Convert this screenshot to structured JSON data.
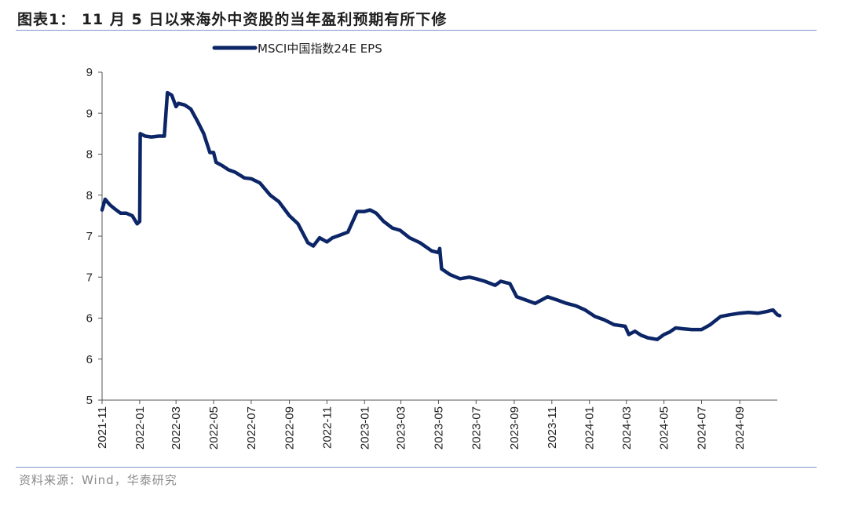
{
  "title": "图表1：  11 月 5 日以来海外中资股的当年盈利预期有所下修",
  "source": "资料来源：Wind，华泰研究",
  "colors": {
    "series": "#0b2566",
    "rule": "#7f95c8",
    "axis": "#555555"
  },
  "chart_data": {
    "type": "line",
    "title": "图表1：  11 月 5 日以来海外中资股的当年盈利预期有所下修",
    "xlabel": "",
    "ylabel": "",
    "x_ticks": [
      "2021-11",
      "2022-01",
      "2022-03",
      "2022-05",
      "2022-07",
      "2022-09",
      "2022-11",
      "2023-01",
      "2023-03",
      "2023-05",
      "2023-07",
      "2023-09",
      "2023-11",
      "2024-01",
      "2024-03",
      "2024-05",
      "2024-07",
      "2024-09"
    ],
    "y_ticks": [
      "5",
      "6",
      "6",
      "7",
      "7",
      "8",
      "8",
      "9",
      "9"
    ],
    "y_tick_values": [
      5.0,
      5.5,
      6.0,
      6.5,
      7.0,
      7.5,
      8.0,
      8.5,
      9.0
    ],
    "ylim": [
      5.0,
      9.0
    ],
    "xlim": [
      "2021-11",
      "2024-11"
    ],
    "legend": {
      "position": "top-center"
    },
    "grid": false,
    "series": [
      {
        "name": "MSCI中国指数24E EPS",
        "points": [
          [
            "2021-11",
            7.32
          ],
          [
            "2021-11-06",
            7.45
          ],
          [
            "2021-11-14",
            7.38
          ],
          [
            "2021-11-22",
            7.33
          ],
          [
            "2021-12-01",
            7.28
          ],
          [
            "2021-12-10",
            7.28
          ],
          [
            "2021-12-20",
            7.25
          ],
          [
            "2021-12-28",
            7.15
          ],
          [
            "2022-01-01",
            7.18
          ],
          [
            "2022-01-02",
            8.25
          ],
          [
            "2022-01-10",
            8.22
          ],
          [
            "2022-01-20",
            8.21
          ],
          [
            "2022-02-01",
            8.22
          ],
          [
            "2022-02-10",
            8.22
          ],
          [
            "2022-02-15",
            8.75
          ],
          [
            "2022-02-22",
            8.72
          ],
          [
            "2022-03-01",
            8.58
          ],
          [
            "2022-03-05",
            8.62
          ],
          [
            "2022-03-15",
            8.6
          ],
          [
            "2022-03-25",
            8.55
          ],
          [
            "2022-04-05",
            8.4
          ],
          [
            "2022-04-15",
            8.25
          ],
          [
            "2022-04-25",
            8.02
          ],
          [
            "2022-05-01",
            8.02
          ],
          [
            "2022-05-05",
            7.9
          ],
          [
            "2022-05-15",
            7.86
          ],
          [
            "2022-05-25",
            7.81
          ],
          [
            "2022-06-05",
            7.78
          ],
          [
            "2022-06-20",
            7.71
          ],
          [
            "2022-07-01",
            7.7
          ],
          [
            "2022-07-15",
            7.65
          ],
          [
            "2022-08-01",
            7.5
          ],
          [
            "2022-08-15",
            7.42
          ],
          [
            "2022-09-01",
            7.25
          ],
          [
            "2022-09-15",
            7.15
          ],
          [
            "2022-10-01",
            6.92
          ],
          [
            "2022-10-10",
            6.88
          ],
          [
            "2022-10-20",
            6.98
          ],
          [
            "2022-11-01",
            6.93
          ],
          [
            "2022-11-10",
            6.98
          ],
          [
            "2022-11-25",
            7.02
          ],
          [
            "2022-12-05",
            7.05
          ],
          [
            "2022-12-20",
            7.3
          ],
          [
            "2023-01-01",
            7.3
          ],
          [
            "2023-01-10",
            7.32
          ],
          [
            "2023-01-20",
            7.28
          ],
          [
            "2023-02-01",
            7.18
          ],
          [
            "2023-02-15",
            7.1
          ],
          [
            "2023-02-28",
            7.07
          ],
          [
            "2023-03-15",
            6.98
          ],
          [
            "2023-04-01",
            6.92
          ],
          [
            "2023-04-20",
            6.82
          ],
          [
            "2023-05-01",
            6.8
          ],
          [
            "2023-05-03",
            6.85
          ],
          [
            "2023-05-06",
            6.6
          ],
          [
            "2023-05-20",
            6.53
          ],
          [
            "2023-06-05",
            6.48
          ],
          [
            "2023-06-20",
            6.5
          ],
          [
            "2023-07-01",
            6.48
          ],
          [
            "2023-07-15",
            6.45
          ],
          [
            "2023-08-01",
            6.4
          ],
          [
            "2023-08-10",
            6.45
          ],
          [
            "2023-08-25",
            6.42
          ],
          [
            "2023-09-05",
            6.26
          ],
          [
            "2023-09-20",
            6.22
          ],
          [
            "2023-10-05",
            6.18
          ],
          [
            "2023-10-15",
            6.22
          ],
          [
            "2023-10-25",
            6.26
          ],
          [
            "2023-11-10",
            6.22
          ],
          [
            "2023-11-25",
            6.18
          ],
          [
            "2023-12-10",
            6.15
          ],
          [
            "2023-12-25",
            6.1
          ],
          [
            "2024-01-10",
            6.02
          ],
          [
            "2024-01-25",
            5.98
          ],
          [
            "2024-02-10",
            5.92
          ],
          [
            "2024-02-28",
            5.9
          ],
          [
            "2024-03-05",
            5.8
          ],
          [
            "2024-03-15",
            5.84
          ],
          [
            "2024-03-25",
            5.79
          ],
          [
            "2024-04-05",
            5.76
          ],
          [
            "2024-04-20",
            5.74
          ],
          [
            "2024-05-01",
            5.8
          ],
          [
            "2024-05-10",
            5.83
          ],
          [
            "2024-05-20",
            5.88
          ],
          [
            "2024-06-01",
            5.87
          ],
          [
            "2024-06-15",
            5.86
          ],
          [
            "2024-07-01",
            5.86
          ],
          [
            "2024-07-15",
            5.92
          ],
          [
            "2024-08-01",
            6.02
          ],
          [
            "2024-08-15",
            6.04
          ],
          [
            "2024-09-01",
            6.06
          ],
          [
            "2024-09-15",
            6.07
          ],
          [
            "2024-10-01",
            6.06
          ],
          [
            "2024-10-15",
            6.08
          ],
          [
            "2024-10-25",
            6.1
          ],
          [
            "2024-11-01",
            6.04
          ],
          [
            "2024-11-05",
            6.03
          ]
        ]
      }
    ]
  }
}
